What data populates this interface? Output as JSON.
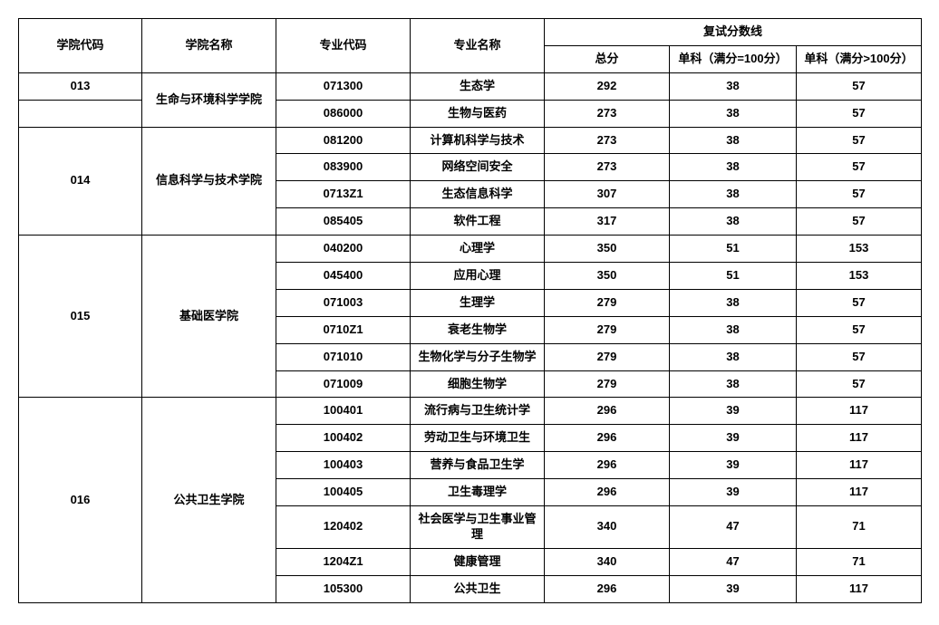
{
  "table": {
    "border_color": "#000000",
    "background_color": "#ffffff",
    "text_color": "#000000",
    "font_size": 13,
    "font_weight": "bold",
    "headers": {
      "col1": "学院代码",
      "col2": "学院名称",
      "col3": "专业代码",
      "col4": "专业名称",
      "group": "复试分数线",
      "sub1": "总分",
      "sub2": "单科（满分=100分）",
      "sub3": "单科（满分>100分）"
    },
    "colleges": [
      {
        "code": "013",
        "name": "生命与环境科学学院",
        "rows": [
          {
            "major_code": "071300",
            "major_name": "生态学",
            "total": "292",
            "s100": "38",
            "sgt100": "57"
          },
          {
            "major_code": "086000",
            "major_name": "生物与医药",
            "total": "273",
            "s100": "38",
            "sgt100": "57"
          }
        ]
      },
      {
        "code": "014",
        "name": "信息科学与技术学院",
        "rows": [
          {
            "major_code": "081200",
            "major_name": "计算机科学与技术",
            "total": "273",
            "s100": "38",
            "sgt100": "57"
          },
          {
            "major_code": "083900",
            "major_name": "网络空间安全",
            "total": "273",
            "s100": "38",
            "sgt100": "57"
          },
          {
            "major_code": "0713Z1",
            "major_name": "生态信息科学",
            "total": "307",
            "s100": "38",
            "sgt100": "57"
          },
          {
            "major_code": "085405",
            "major_name": "软件工程",
            "total": "317",
            "s100": "38",
            "sgt100": "57"
          }
        ]
      },
      {
        "code": "015",
        "name": "基础医学院",
        "rows": [
          {
            "major_code": "040200",
            "major_name": "心理学",
            "total": "350",
            "s100": "51",
            "sgt100": "153"
          },
          {
            "major_code": "045400",
            "major_name": "应用心理",
            "total": "350",
            "s100": "51",
            "sgt100": "153"
          },
          {
            "major_code": "071003",
            "major_name": "生理学",
            "total": "279",
            "s100": "38",
            "sgt100": "57"
          },
          {
            "major_code": "0710Z1",
            "major_name": "衰老生物学",
            "total": "279",
            "s100": "38",
            "sgt100": "57"
          },
          {
            "major_code": "071010",
            "major_name": "生物化学与分子生物学",
            "total": "279",
            "s100": "38",
            "sgt100": "57"
          },
          {
            "major_code": "071009",
            "major_name": "细胞生物学",
            "total": "279",
            "s100": "38",
            "sgt100": "57"
          }
        ]
      },
      {
        "code": "016",
        "name": "公共卫生学院",
        "rows": [
          {
            "major_code": "100401",
            "major_name": "流行病与卫生统计学",
            "total": "296",
            "s100": "39",
            "sgt100": "117"
          },
          {
            "major_code": "100402",
            "major_name": "劳动卫生与环境卫生",
            "total": "296",
            "s100": "39",
            "sgt100": "117"
          },
          {
            "major_code": "100403",
            "major_name": "营养与食品卫生学",
            "total": "296",
            "s100": "39",
            "sgt100": "117"
          },
          {
            "major_code": "100405",
            "major_name": "卫生毒理学",
            "total": "296",
            "s100": "39",
            "sgt100": "117"
          },
          {
            "major_code": "120402",
            "major_name": "社会医学与卫生事业管理",
            "total": "340",
            "s100": "47",
            "sgt100": "71"
          },
          {
            "major_code": "1204Z1",
            "major_name": "健康管理",
            "total": "340",
            "s100": "47",
            "sgt100": "71"
          },
          {
            "major_code": "105300",
            "major_name": "公共卫生",
            "total": "296",
            "s100": "39",
            "sgt100": "117"
          }
        ]
      }
    ]
  }
}
